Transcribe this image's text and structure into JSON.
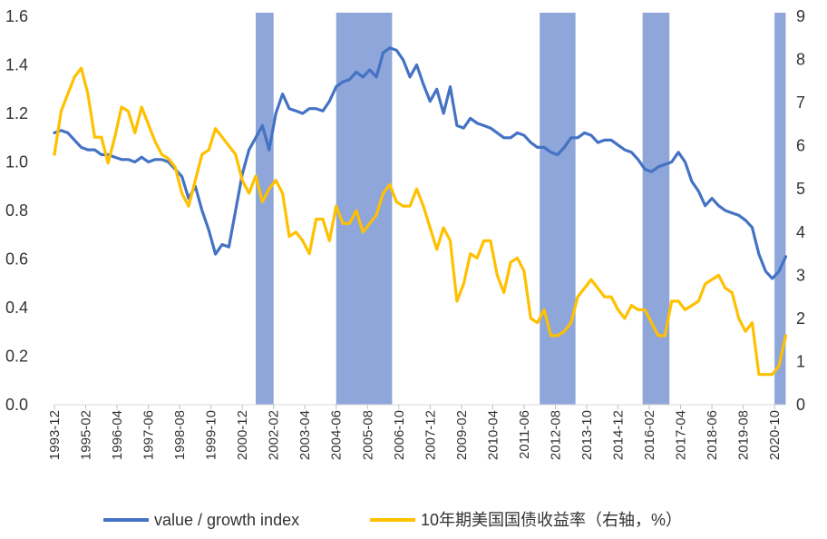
{
  "chart_data": {
    "type": "line",
    "title": "",
    "xlabel": "",
    "ylabel": "",
    "y2label": "",
    "x_start": "1993-12",
    "x_end": "2021-02",
    "ylim": [
      0,
      1.6
    ],
    "y2lim": [
      0,
      9
    ],
    "yticks": [
      "0.0",
      "0.2",
      "0.4",
      "0.6",
      "0.8",
      "1.0",
      "1.2",
      "1.4",
      "1.6"
    ],
    "y2ticks": [
      "0",
      "1",
      "2",
      "3",
      "4",
      "5",
      "6",
      "7",
      "8",
      "9"
    ],
    "xticks": [
      "1993-12",
      "1995-02",
      "1996-04",
      "1997-06",
      "1998-08",
      "1999-10",
      "2000-12",
      "2002-02",
      "2003-04",
      "2004-06",
      "2005-08",
      "2006-10",
      "2007-12",
      "2009-02",
      "2010-04",
      "2011-06",
      "2012-08",
      "2013-10",
      "2014-12",
      "2016-02",
      "2017-04",
      "2018-06",
      "2019-08",
      "2020-10"
    ],
    "shaded_periods": [
      {
        "start": "2001-06",
        "end": "2002-02"
      },
      {
        "start": "2004-06",
        "end": "2006-07"
      },
      {
        "start": "2012-01",
        "end": "2013-05"
      },
      {
        "start": "2015-11",
        "end": "2016-11"
      },
      {
        "start": "2020-10",
        "end": "2021-03"
      }
    ],
    "shade_color": "#8EA6D9",
    "legend_position": "bottom",
    "series": [
      {
        "name": "value / growth index",
        "axis": "left",
        "color": "#4472C4",
        "x": [
          "1993-12",
          "1994-03",
          "1994-06",
          "1994-09",
          "1994-12",
          "1995-03",
          "1995-06",
          "1995-09",
          "1995-12",
          "1996-03",
          "1996-06",
          "1996-09",
          "1996-12",
          "1997-03",
          "1997-06",
          "1997-09",
          "1997-12",
          "1998-03",
          "1998-06",
          "1998-09",
          "1998-12",
          "1999-03",
          "1999-06",
          "1999-09",
          "1999-12",
          "2000-03",
          "2000-06",
          "2000-09",
          "2000-12",
          "2001-03",
          "2001-06",
          "2001-09",
          "2001-12",
          "2002-03",
          "2002-06",
          "2002-09",
          "2002-12",
          "2003-03",
          "2003-06",
          "2003-09",
          "2003-12",
          "2004-03",
          "2004-06",
          "2004-09",
          "2004-12",
          "2005-03",
          "2005-06",
          "2005-09",
          "2005-12",
          "2006-03",
          "2006-06",
          "2006-09",
          "2006-12",
          "2007-03",
          "2007-06",
          "2007-09",
          "2007-12",
          "2008-03",
          "2008-06",
          "2008-09",
          "2008-12",
          "2009-03",
          "2009-06",
          "2009-09",
          "2009-12",
          "2010-03",
          "2010-06",
          "2010-09",
          "2010-12",
          "2011-03",
          "2011-06",
          "2011-09",
          "2011-12",
          "2012-03",
          "2012-06",
          "2012-09",
          "2012-12",
          "2013-03",
          "2013-06",
          "2013-09",
          "2013-12",
          "2014-03",
          "2014-06",
          "2014-09",
          "2014-12",
          "2015-03",
          "2015-06",
          "2015-09",
          "2015-12",
          "2016-03",
          "2016-06",
          "2016-09",
          "2016-12",
          "2017-03",
          "2017-06",
          "2017-09",
          "2017-12",
          "2018-03",
          "2018-06",
          "2018-09",
          "2018-12",
          "2019-03",
          "2019-06",
          "2019-09",
          "2019-12",
          "2020-03",
          "2020-06",
          "2020-09",
          "2020-12",
          "2021-03"
        ],
        "values": [
          1.12,
          1.13,
          1.12,
          1.09,
          1.06,
          1.05,
          1.05,
          1.03,
          1.03,
          1.02,
          1.01,
          1.01,
          1.0,
          1.02,
          1.0,
          1.01,
          1.01,
          1.0,
          0.97,
          0.94,
          0.85,
          0.9,
          0.8,
          0.72,
          0.62,
          0.66,
          0.65,
          0.8,
          0.95,
          1.05,
          1.1,
          1.15,
          1.05,
          1.2,
          1.28,
          1.22,
          1.21,
          1.2,
          1.22,
          1.22,
          1.21,
          1.25,
          1.31,
          1.33,
          1.34,
          1.37,
          1.35,
          1.38,
          1.35,
          1.45,
          1.47,
          1.46,
          1.42,
          1.35,
          1.4,
          1.32,
          1.25,
          1.3,
          1.2,
          1.31,
          1.15,
          1.14,
          1.18,
          1.16,
          1.15,
          1.14,
          1.12,
          1.1,
          1.1,
          1.12,
          1.11,
          1.08,
          1.06,
          1.06,
          1.04,
          1.03,
          1.06,
          1.1,
          1.1,
          1.12,
          1.11,
          1.08,
          1.09,
          1.09,
          1.07,
          1.05,
          1.04,
          1.01,
          0.97,
          0.96,
          0.98,
          0.99,
          1.0,
          1.04,
          1.0,
          0.92,
          0.88,
          0.82,
          0.85,
          0.82,
          0.8,
          0.79,
          0.78,
          0.76,
          0.73,
          0.62,
          0.55,
          0.52,
          0.55,
          0.61
        ]
      },
      {
        "name": "10年期美国国债收益率（右轴，%）",
        "axis": "right",
        "color": "#FFC000",
        "x": [
          "1993-12",
          "1994-03",
          "1994-06",
          "1994-09",
          "1994-12",
          "1995-03",
          "1995-06",
          "1995-09",
          "1995-12",
          "1996-03",
          "1996-06",
          "1996-09",
          "1996-12",
          "1997-03",
          "1997-06",
          "1997-09",
          "1997-12",
          "1998-03",
          "1998-06",
          "1998-09",
          "1998-12",
          "1999-03",
          "1999-06",
          "1999-09",
          "1999-12",
          "2000-03",
          "2000-06",
          "2000-09",
          "2000-12",
          "2001-03",
          "2001-06",
          "2001-09",
          "2001-12",
          "2002-03",
          "2002-06",
          "2002-09",
          "2002-12",
          "2003-03",
          "2003-06",
          "2003-09",
          "2003-12",
          "2004-03",
          "2004-06",
          "2004-09",
          "2004-12",
          "2005-03",
          "2005-06",
          "2005-09",
          "2005-12",
          "2006-03",
          "2006-06",
          "2006-09",
          "2006-12",
          "2007-03",
          "2007-06",
          "2007-09",
          "2007-12",
          "2008-03",
          "2008-06",
          "2008-09",
          "2008-12",
          "2009-03",
          "2009-06",
          "2009-09",
          "2009-12",
          "2010-03",
          "2010-06",
          "2010-09",
          "2010-12",
          "2011-03",
          "2011-06",
          "2011-09",
          "2011-12",
          "2012-03",
          "2012-06",
          "2012-09",
          "2012-12",
          "2013-03",
          "2013-06",
          "2013-09",
          "2013-12",
          "2014-03",
          "2014-06",
          "2014-09",
          "2014-12",
          "2015-03",
          "2015-06",
          "2015-09",
          "2015-12",
          "2016-03",
          "2016-06",
          "2016-09",
          "2016-12",
          "2017-03",
          "2017-06",
          "2017-09",
          "2017-12",
          "2018-03",
          "2018-06",
          "2018-09",
          "2018-12",
          "2019-03",
          "2019-06",
          "2019-09",
          "2019-12",
          "2020-03",
          "2020-06",
          "2020-09",
          "2020-12",
          "2021-03"
        ],
        "values": [
          5.8,
          6.8,
          7.2,
          7.6,
          7.8,
          7.2,
          6.2,
          6.2,
          5.6,
          6.2,
          6.9,
          6.8,
          6.3,
          6.9,
          6.5,
          6.1,
          5.8,
          5.7,
          5.5,
          4.9,
          4.6,
          5.2,
          5.8,
          5.9,
          6.4,
          6.2,
          6.0,
          5.8,
          5.2,
          4.9,
          5.3,
          4.7,
          5.0,
          5.2,
          4.9,
          3.9,
          4.0,
          3.8,
          3.5,
          4.3,
          4.3,
          3.8,
          4.6,
          4.2,
          4.2,
          4.5,
          4.0,
          4.2,
          4.4,
          4.9,
          5.1,
          4.7,
          4.6,
          4.6,
          5.0,
          4.6,
          4.1,
          3.6,
          4.1,
          3.8,
          2.4,
          2.8,
          3.5,
          3.4,
          3.8,
          3.8,
          3.0,
          2.6,
          3.3,
          3.4,
          3.1,
          2.0,
          1.9,
          2.2,
          1.6,
          1.6,
          1.7,
          1.9,
          2.5,
          2.7,
          2.9,
          2.7,
          2.5,
          2.5,
          2.2,
          2.0,
          2.3,
          2.2,
          2.2,
          1.9,
          1.6,
          1.6,
          2.4,
          2.4,
          2.2,
          2.3,
          2.4,
          2.8,
          2.9,
          3.0,
          2.7,
          2.6,
          2.0,
          1.7,
          1.9,
          0.7,
          0.7,
          0.7,
          0.9,
          1.6
        ]
      }
    ]
  }
}
